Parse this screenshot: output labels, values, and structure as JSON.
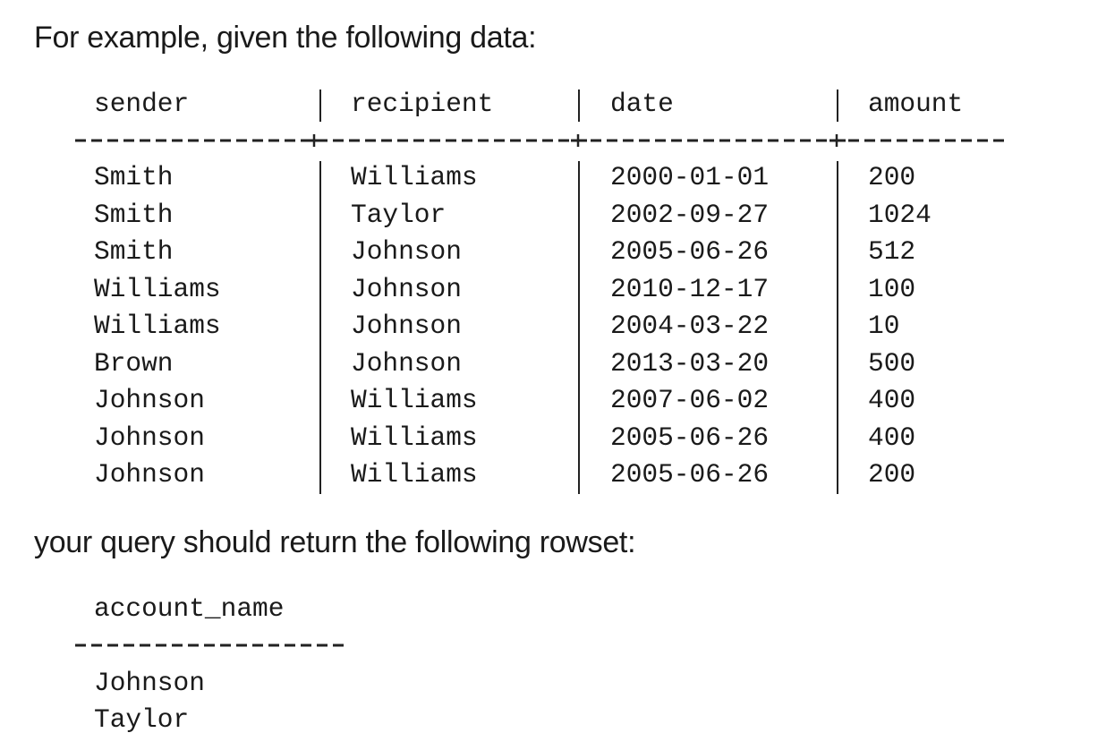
{
  "intro_text": "For example, given the following data:",
  "data_table": {
    "headers": {
      "sender": "sender",
      "recipient": "recipient",
      "date": "date",
      "amount": "amount"
    },
    "rows": [
      {
        "sender": "Smith",
        "recipient": "Williams",
        "date": "2000-01-01",
        "amount": "200"
      },
      {
        "sender": "Smith",
        "recipient": "Taylor",
        "date": "2002-09-27",
        "amount": "1024"
      },
      {
        "sender": "Smith",
        "recipient": "Johnson",
        "date": "2005-06-26",
        "amount": "512"
      },
      {
        "sender": "Williams",
        "recipient": "Johnson",
        "date": "2010-12-17",
        "amount": "100"
      },
      {
        "sender": "Williams",
        "recipient": "Johnson",
        "date": "2004-03-22",
        "amount": "10"
      },
      {
        "sender": "Brown",
        "recipient": "Johnson",
        "date": "2013-03-20",
        "amount": "500"
      },
      {
        "sender": "Johnson",
        "recipient": "Williams",
        "date": "2007-06-02",
        "amount": "400"
      },
      {
        "sender": "Johnson",
        "recipient": "Williams",
        "date": "2005-06-26",
        "amount": "400"
      },
      {
        "sender": "Johnson",
        "recipient": "Williams",
        "date": "2005-06-26",
        "amount": "200"
      }
    ]
  },
  "outro_text": "your query should return the following rowset:",
  "result_table": {
    "header": "account_name",
    "rows": [
      "Johnson",
      "Taylor"
    ]
  }
}
